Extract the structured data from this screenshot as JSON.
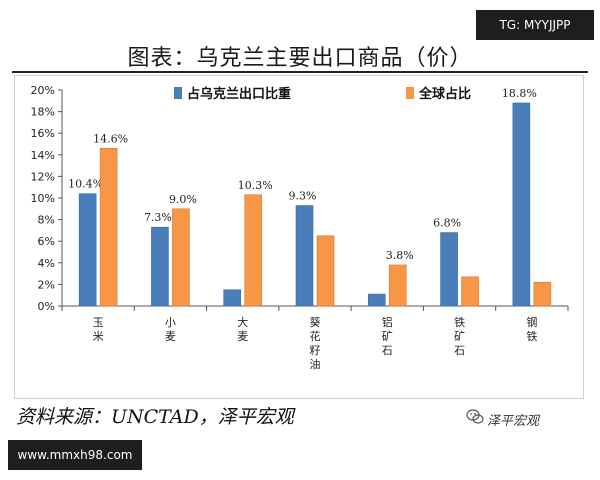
{
  "watermark_top": "TG: MYYJJPP",
  "watermark_bottom": "www.mmxh98.com",
  "source_text": "资料来源：UNCTAD，泽平宏观",
  "brand_text": "泽平宏观",
  "chart_data": {
    "type": "bar",
    "title": "图表：乌克兰主要出口商品（价）",
    "categories": [
      "玉米",
      "小麦",
      "大麦",
      "葵花籽油",
      "铝矿石",
      "铁矿石",
      "钢铁"
    ],
    "category_columns": [
      [
        "玉",
        "米"
      ],
      [
        "小",
        "麦"
      ],
      [
        "大",
        "麦"
      ],
      [
        "葵",
        "花",
        "籽",
        "油"
      ],
      [
        "铝",
        "矿",
        "石"
      ],
      [
        "铁",
        "矿",
        "石"
      ],
      [
        "钢",
        "铁"
      ]
    ],
    "series": [
      {
        "name": "占乌克兰出口比重",
        "color": "#4a7ebb",
        "values": [
          10.4,
          7.3,
          1.5,
          9.3,
          1.1,
          6.8,
          18.8
        ],
        "labels": [
          "10.4%",
          "7.3%",
          "",
          "9.3%",
          "",
          "6.8%",
          "18.8%"
        ]
      },
      {
        "name": "全球占比",
        "color": "#f79646",
        "values": [
          14.6,
          9.0,
          10.3,
          6.5,
          3.8,
          2.7,
          2.2
        ],
        "labels": [
          "14.6%",
          "9.0%",
          "10.3%",
          "",
          "3.8%",
          "",
          ""
        ]
      }
    ],
    "yticks": [
      "0%",
      "2%",
      "4%",
      "6%",
      "8%",
      "10%",
      "12%",
      "14%",
      "16%",
      "18%",
      "20%"
    ],
    "ylim": [
      0,
      20
    ],
    "grid": false,
    "legend_position": "top"
  }
}
